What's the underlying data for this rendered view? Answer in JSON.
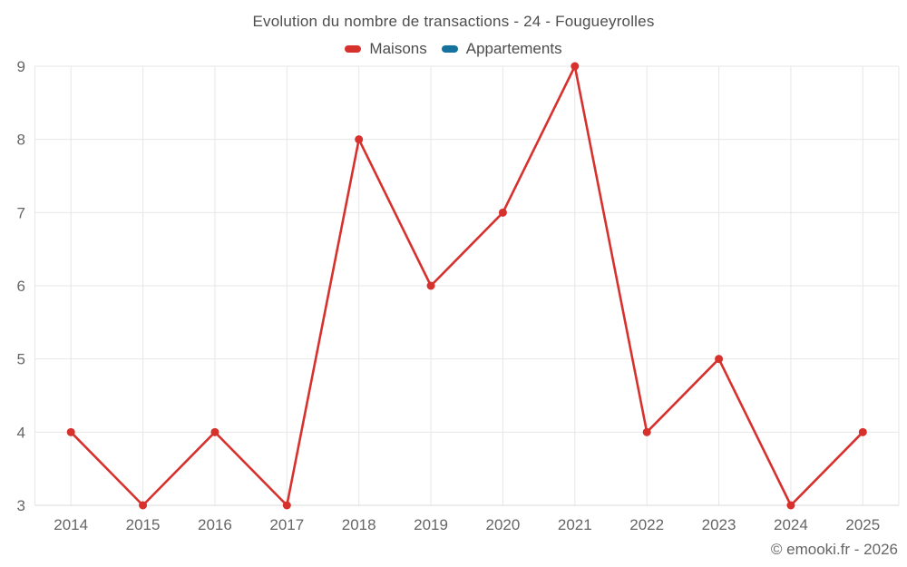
{
  "chart_data": {
    "type": "line",
    "title": "Evolution du nombre de transactions - 24 - Fougueyrolles",
    "categories": [
      "2014",
      "2015",
      "2016",
      "2017",
      "2018",
      "2019",
      "2020",
      "2021",
      "2022",
      "2023",
      "2024",
      "2025"
    ],
    "series": [
      {
        "name": "Maisons",
        "color": "#d7312e",
        "values": [
          4,
          3,
          4,
          3,
          8,
          6,
          7,
          9,
          4,
          5,
          3,
          4
        ]
      },
      {
        "name": "Appartements",
        "color": "#15729f",
        "values": []
      }
    ],
    "xlabel": "",
    "ylabel": "",
    "ylim": [
      3,
      9
    ],
    "yticks": [
      3,
      4,
      5,
      6,
      7,
      8,
      9
    ],
    "grid": true,
    "legend_position": "top",
    "marker": "circle"
  },
  "footer": {
    "copyright": "© emooki.fr - 2026"
  },
  "colors": {
    "background": "#ffffff",
    "grid": "#e7e7e7",
    "axis_line": "#d9d9d9",
    "title_text": "#4d4d4d",
    "tick_text": "#666666",
    "copyright_text": "#666666",
    "maisons_accent": "#d7312e",
    "appartements_accent": "#15729f"
  }
}
